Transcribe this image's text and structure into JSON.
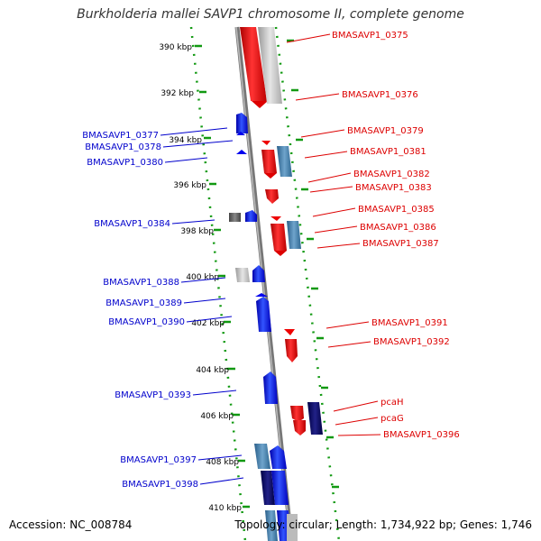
{
  "title": "Burkholderia mallei SAVP1 chromosome II, complete genome",
  "accession": "Accession: NC_008784",
  "topology": "Topology: circular; Length: 1,734,922 bp; Genes: 1,746",
  "colors": {
    "forward_gene": "#ee0000",
    "reverse_gene": "#0000ee",
    "other": "#999999",
    "tick": "#119911",
    "axis": "#888888"
  },
  "kbp_ticks": [
    "390 kbp",
    "392 kbp",
    "394 kbp",
    "396 kbp",
    "398 kbp",
    "400 kbp",
    "402 kbp",
    "404 kbp",
    "406 kbp",
    "408 kbp",
    "410 kbp"
  ],
  "right_labels": [
    "BMASAVP1_0375",
    "BMASAVP1_0376",
    "BMASAVP1_0379",
    "BMASAVP1_0381",
    "BMASAVP1_0382",
    "BMASAVP1_0383",
    "BMASAVP1_0385",
    "BMASAVP1_0386",
    "BMASAVP1_0387",
    "BMASAVP1_0391",
    "BMASAVP1_0392",
    "pcaH",
    "pcaG",
    "BMASAVP1_0396"
  ],
  "left_labels": [
    "BMASAVP1_0377",
    "BMASAVP1_0378",
    "BMASAVP1_0380",
    "BMASAVP1_0384",
    "BMASAVP1_0388",
    "BMASAVP1_0389",
    "BMASAVP1_0390",
    "BMASAVP1_0393",
    "BMASAVP1_0397",
    "BMASAVP1_0398"
  ]
}
